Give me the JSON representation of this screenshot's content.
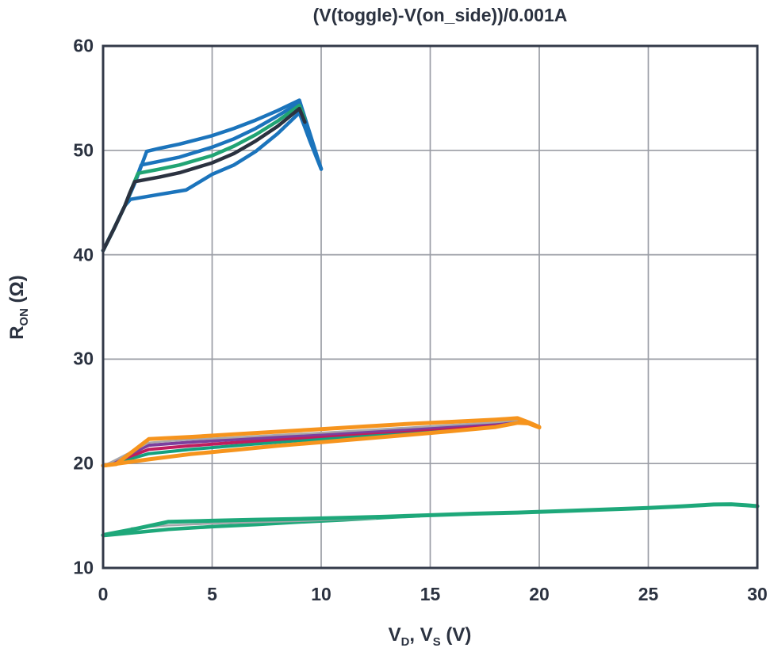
{
  "title": "(V(toggle)-V(on_side))/0.001A",
  "y_axis_label": {
    "base": "R",
    "sub": "ON",
    "rest": " (Ω)"
  },
  "x_axis_label": {
    "p1": "V",
    "s1": "D",
    "p2": ", V",
    "s2": "S",
    "p3": " (V)"
  },
  "chart_data": {
    "type": "line",
    "title": "(V(toggle)-V(on_side))/0.001A",
    "xlabel": "V_D, V_S (V)",
    "ylabel": "R_ON (Ω)",
    "xlim": [
      0,
      30
    ],
    "ylim": [
      10,
      60
    ],
    "x_ticks": [
      0,
      5,
      10,
      15,
      20,
      25,
      30
    ],
    "y_ticks": [
      10,
      20,
      30,
      40,
      50,
      60
    ],
    "grid": true,
    "legend": "none",
    "colors": {
      "blue": "#1b74bc",
      "green": "#21a473",
      "black": "#2b3240",
      "orange": "#f6941d",
      "purple": "#7b3f9d",
      "crimson": "#c01d5e",
      "teal": "#14a07e",
      "bottom_green": "#1ea87a",
      "gray": "#a7a7ac",
      "grid": "#9a9da5",
      "frame": "#333a49"
    },
    "series": [
      {
        "name": "top-blue-outer",
        "color": "#1b74bc",
        "width": 4.5,
        "points": [
          [
            0,
            40.4
          ],
          [
            0.5,
            42.5
          ],
          [
            1,
            44.7
          ],
          [
            1.5,
            47.1
          ],
          [
            2,
            49.9
          ],
          [
            2.6,
            50.2
          ],
          [
            3.5,
            50.6
          ],
          [
            5,
            51.4
          ],
          [
            6,
            52.1
          ],
          [
            7,
            52.9
          ],
          [
            8,
            53.8
          ],
          [
            9,
            54.8
          ],
          [
            9.5,
            51.5
          ],
          [
            10,
            48.2
          ]
        ]
      },
      {
        "name": "top-blue-2",
        "color": "#1b74bc",
        "width": 4.5,
        "points": [
          [
            0,
            40.4
          ],
          [
            0.5,
            42.5
          ],
          [
            1,
            44.7
          ],
          [
            1.4,
            46.6
          ],
          [
            1.75,
            48.6
          ],
          [
            2.6,
            48.95
          ],
          [
            3.5,
            49.35
          ],
          [
            5,
            50.3
          ],
          [
            6,
            51.1
          ],
          [
            7,
            52.1
          ],
          [
            8,
            53.3
          ],
          [
            9,
            54.55
          ],
          [
            9.4,
            51.8
          ],
          [
            10,
            48.25
          ]
        ]
      },
      {
        "name": "top-blue-3",
        "color": "#1b74bc",
        "width": 4.5,
        "points": [
          [
            0,
            40.4
          ],
          [
            0.5,
            42.5
          ],
          [
            1,
            44.7
          ],
          [
            1.25,
            45.3
          ],
          [
            2.5,
            45.75
          ],
          [
            3.8,
            46.2
          ],
          [
            5,
            47.7
          ],
          [
            6,
            48.6
          ],
          [
            7,
            49.9
          ],
          [
            8,
            51.6
          ],
          [
            9,
            53.6
          ],
          [
            9.5,
            50.8
          ],
          [
            10,
            48.2
          ]
        ]
      },
      {
        "name": "top-green",
        "color": "#21a473",
        "width": 4.5,
        "points": [
          [
            0,
            40.4
          ],
          [
            0.5,
            42.5
          ],
          [
            1,
            44.7
          ],
          [
            1.3,
            46.3
          ],
          [
            1.6,
            47.8
          ],
          [
            2.6,
            48.2
          ],
          [
            3.5,
            48.6
          ],
          [
            5,
            49.5
          ],
          [
            6,
            50.4
          ],
          [
            7,
            51.5
          ],
          [
            8,
            52.8
          ],
          [
            9,
            54.3
          ],
          [
            9.25,
            53.0
          ]
        ]
      },
      {
        "name": "top-black",
        "color": "#2b3240",
        "width": 4.5,
        "points": [
          [
            0,
            40.4
          ],
          [
            0.5,
            42.5
          ],
          [
            1,
            44.7
          ],
          [
            1.2,
            45.8
          ],
          [
            1.45,
            47.0
          ],
          [
            2.6,
            47.45
          ],
          [
            3.5,
            47.85
          ],
          [
            5,
            48.8
          ],
          [
            6,
            49.7
          ],
          [
            7,
            50.9
          ],
          [
            8,
            52.3
          ],
          [
            9,
            54.0
          ],
          [
            9.25,
            52.7
          ]
        ]
      },
      {
        "name": "mid-teal",
        "color": "#14a07e",
        "width": 4,
        "points": [
          [
            0.2,
            19.85
          ],
          [
            2.1,
            20.95
          ],
          [
            4,
            21.35
          ],
          [
            6,
            21.7
          ],
          [
            8,
            22.05
          ],
          [
            10,
            22.35
          ],
          [
            12,
            22.65
          ],
          [
            14,
            22.95
          ],
          [
            16,
            23.3
          ],
          [
            18,
            23.6
          ],
          [
            19,
            23.95
          ]
        ]
      },
      {
        "name": "mid-crimson",
        "color": "#c01d5e",
        "width": 4,
        "points": [
          [
            0.2,
            19.9
          ],
          [
            2.1,
            21.35
          ],
          [
            4,
            21.7
          ],
          [
            6,
            22.0
          ],
          [
            8,
            22.3
          ],
          [
            10,
            22.6
          ],
          [
            12,
            22.9
          ],
          [
            14,
            23.15
          ],
          [
            16,
            23.45
          ],
          [
            18,
            23.75
          ],
          [
            19,
            24.1
          ]
        ]
      },
      {
        "name": "mid-purple",
        "color": "#7b3f9d",
        "width": 4,
        "points": [
          [
            0.2,
            19.9
          ],
          [
            2.1,
            21.75
          ],
          [
            4,
            22.05
          ],
          [
            6,
            22.3
          ],
          [
            8,
            22.55
          ],
          [
            10,
            22.8
          ],
          [
            12,
            23.05
          ],
          [
            14,
            23.3
          ],
          [
            16,
            23.6
          ],
          [
            18,
            23.9
          ],
          [
            19,
            24.15
          ]
        ]
      },
      {
        "name": "mid-gray",
        "color": "#a7a7ac",
        "width": 2.5,
        "points": [
          [
            0.2,
            19.95
          ],
          [
            2.1,
            22.0
          ],
          [
            4,
            22.3
          ],
          [
            6,
            22.5
          ],
          [
            8,
            22.75
          ],
          [
            10,
            22.95
          ],
          [
            12,
            23.2
          ],
          [
            14,
            23.45
          ],
          [
            16,
            23.7
          ],
          [
            18,
            23.95
          ],
          [
            19,
            24.15
          ]
        ]
      },
      {
        "name": "mid-orange-lower",
        "color": "#f6941d",
        "width": 5,
        "points": [
          [
            0,
            19.8
          ],
          [
            2.1,
            20.4
          ],
          [
            4,
            20.9
          ],
          [
            6,
            21.3
          ],
          [
            8,
            21.7
          ],
          [
            10,
            22.05
          ],
          [
            12,
            22.4
          ],
          [
            14,
            22.75
          ],
          [
            16,
            23.1
          ],
          [
            18,
            23.5
          ],
          [
            19,
            23.9
          ],
          [
            19.5,
            23.85
          ],
          [
            20,
            23.45
          ]
        ]
      },
      {
        "name": "mid-orange-upper",
        "color": "#f6941d",
        "width": 5,
        "points": [
          [
            0,
            19.8
          ],
          [
            0.6,
            19.95
          ],
          [
            2.1,
            22.35
          ],
          [
            4,
            22.55
          ],
          [
            6,
            22.8
          ],
          [
            8,
            23.05
          ],
          [
            10,
            23.3
          ],
          [
            12,
            23.55
          ],
          [
            14,
            23.8
          ],
          [
            16,
            24.0
          ],
          [
            18,
            24.2
          ],
          [
            19,
            24.35
          ],
          [
            19.5,
            23.95
          ],
          [
            20,
            23.5
          ]
        ]
      },
      {
        "name": "bottom-green-lower",
        "color": "#1ea87a",
        "width": 4.5,
        "points": [
          [
            0,
            13.1
          ],
          [
            1.5,
            13.4
          ],
          [
            3,
            13.7
          ],
          [
            5,
            13.95
          ],
          [
            7,
            14.15
          ],
          [
            9,
            14.4
          ],
          [
            11,
            14.6
          ],
          [
            13,
            14.85
          ],
          [
            14.5,
            15.0
          ]
        ]
      },
      {
        "name": "bottom-gray",
        "color": "#a7a7ac",
        "width": 2.5,
        "points": [
          [
            1.3,
            13.8
          ],
          [
            3,
            14.08
          ],
          [
            5,
            14.25
          ],
          [
            7,
            14.38
          ],
          [
            9,
            14.5
          ],
          [
            11,
            14.65
          ],
          [
            12.5,
            14.75
          ]
        ]
      },
      {
        "name": "bottom-green-upper",
        "color": "#1ea87a",
        "width": 5,
        "points": [
          [
            0,
            13.15
          ],
          [
            1.5,
            13.75
          ],
          [
            3,
            14.42
          ],
          [
            5,
            14.52
          ],
          [
            7,
            14.62
          ],
          [
            9,
            14.7
          ],
          [
            11,
            14.8
          ],
          [
            13,
            14.92
          ],
          [
            15,
            15.05
          ],
          [
            17,
            15.2
          ],
          [
            19,
            15.3
          ],
          [
            21,
            15.45
          ],
          [
            23,
            15.6
          ],
          [
            25,
            15.75
          ],
          [
            26.5,
            15.9
          ],
          [
            28,
            16.08
          ],
          [
            28.8,
            16.1
          ],
          [
            29.5,
            16.0
          ],
          [
            30,
            15.92
          ]
        ]
      }
    ]
  }
}
